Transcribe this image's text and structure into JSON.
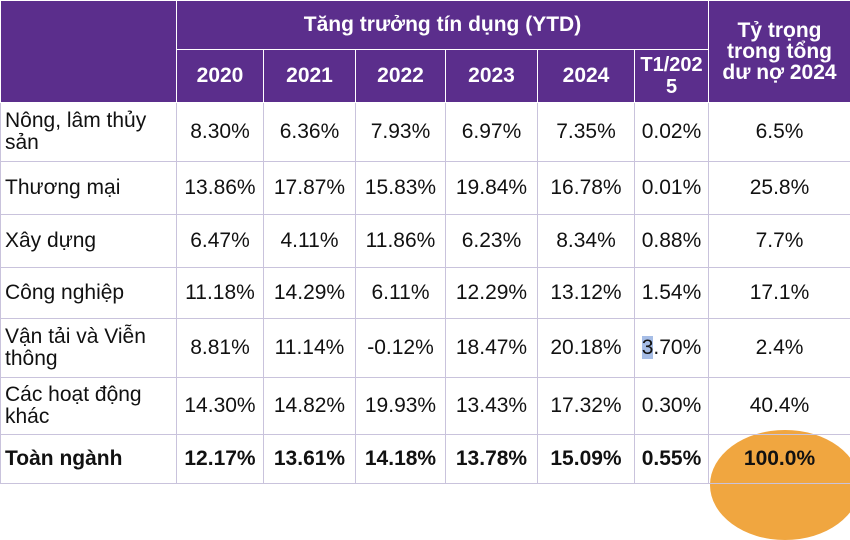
{
  "header": {
    "group_title": "Tăng trưởng tín dụng (YTD)",
    "years": [
      "2020",
      "2021",
      "2022",
      "2023",
      "2024",
      "T1/2025"
    ],
    "share_title": "Tỷ trọng trong tổng dư nợ 2024"
  },
  "rows": [
    {
      "label": "Nông, lâm thủy sản",
      "values": [
        "8.30%",
        "6.36%",
        "7.93%",
        "6.97%",
        "7.35%",
        "0.02%"
      ],
      "share": "6.5%"
    },
    {
      "label": "Thương mại",
      "values": [
        "13.86%",
        "17.87%",
        "15.83%",
        "19.84%",
        "16.78%",
        "0.01%"
      ],
      "share": "25.8%"
    },
    {
      "label": "Xây dựng",
      "values": [
        "6.47%",
        "4.11%",
        "11.86%",
        "6.23%",
        "8.34%",
        "0.88%"
      ],
      "share": "7.7%"
    },
    {
      "label": "Công nghiệp",
      "values": [
        "11.18%",
        "14.29%",
        "6.11%",
        "12.29%",
        "13.12%",
        "1.54%"
      ],
      "share": "17.1%"
    },
    {
      "label": "Vận tải và Viễn thông",
      "values": [
        "8.81%",
        "11.14%",
        "-0.12%",
        "18.47%",
        "20.18%",
        "3.70%"
      ],
      "share": "2.4%"
    },
    {
      "label": "Các hoạt động khác",
      "values": [
        "14.30%",
        "14.82%",
        "19.93%",
        "13.43%",
        "17.32%",
        "0.30%"
      ],
      "share": "40.4%"
    }
  ],
  "total": {
    "label": "Toàn ngành",
    "values": [
      "12.17%",
      "13.61%",
      "14.18%",
      "13.78%",
      "15.09%",
      "0.55%"
    ],
    "share": "100.0%"
  },
  "highlight": {
    "first_char": "3",
    "rest": ".70%",
    "color": "#a6bde6"
  },
  "colors": {
    "header_bg": "#5b2e8c",
    "accent_deco": "#f0a640"
  }
}
